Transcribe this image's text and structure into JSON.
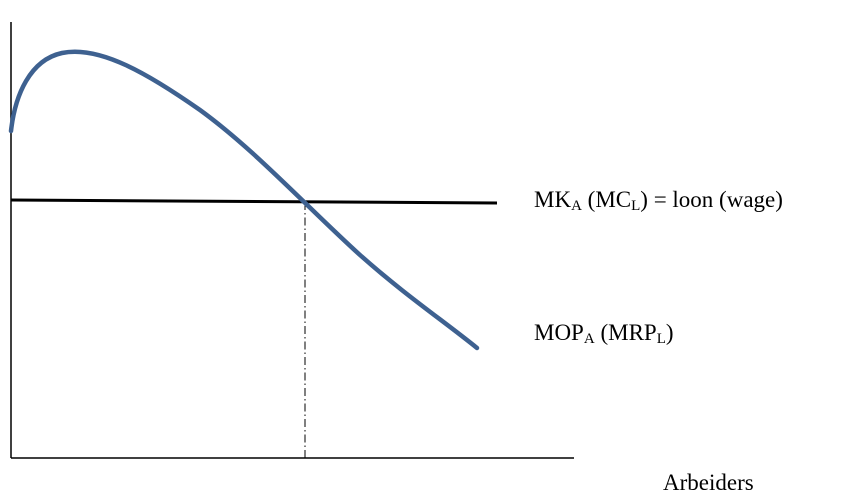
{
  "labels": {
    "wage_line": {
      "main1": "MK",
      "sub1": "A",
      "mid": " (MC",
      "sub2": "L",
      "end": ") = loon (wage)"
    },
    "mrp_curve": {
      "main1": "MOP",
      "sub1": "A",
      "mid": " (MRP",
      "sub2": "L",
      "end": ")"
    },
    "x_axis": "Arbeiders"
  },
  "colors": {
    "axis": "#000000",
    "wage_line": "#000000",
    "mrp_curve": "#3e6190",
    "guide": "#000000"
  }
}
